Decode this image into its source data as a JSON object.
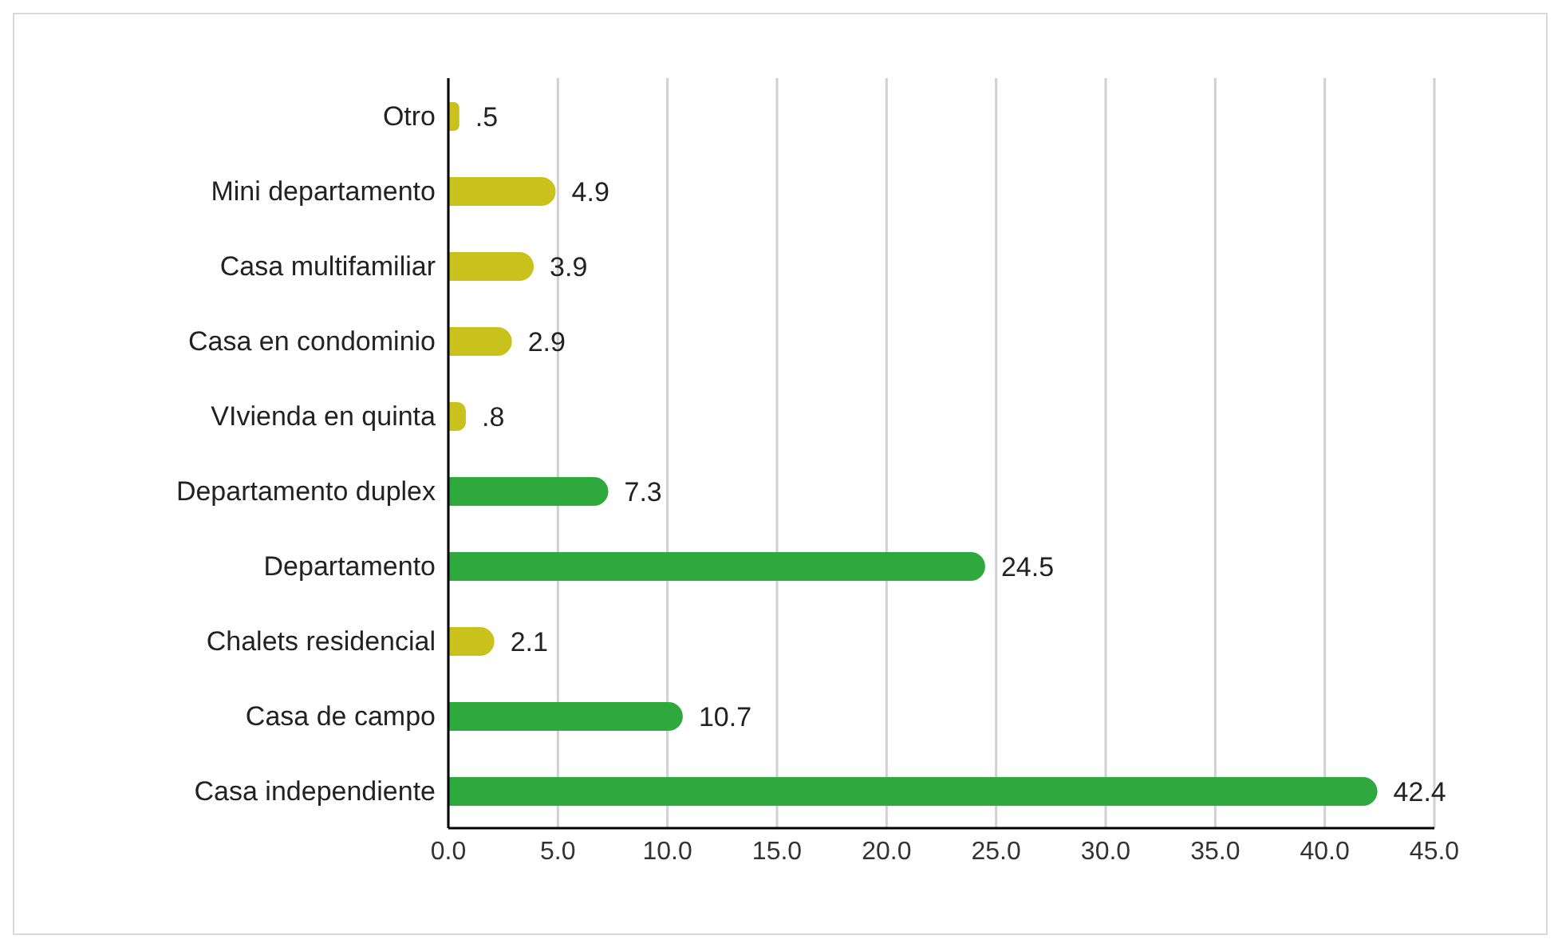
{
  "chart_data": {
    "type": "bar",
    "orientation": "horizontal",
    "categories": [
      "Otro",
      "Mini departamento",
      "Casa multifamiliar",
      "Casa en condominio",
      "VIvienda en quinta",
      "Departamento duplex",
      "Departamento",
      "Chalets residencial",
      "Casa de campo",
      "Casa independiente"
    ],
    "values": [
      0.5,
      4.9,
      3.9,
      2.9,
      0.8,
      7.3,
      24.5,
      2.1,
      10.7,
      42.4
    ],
    "colors": [
      "#c9c21c",
      "#c9c21c",
      "#c9c21c",
      "#c9c21c",
      "#c9c21c",
      "#2fa83e",
      "#2fa83e",
      "#c9c21c",
      "#2fa83e",
      "#2fa83e"
    ],
    "value_labels": [
      ".5",
      "4.9",
      "3.9",
      "2.9",
      ".8",
      "7.3",
      "24.5",
      "2.1",
      "10.7",
      "42.4"
    ],
    "xlim": [
      0,
      45
    ],
    "xticks": [
      {
        "value": 0,
        "label": "0.0"
      },
      {
        "value": 5,
        "label": "5.0"
      },
      {
        "value": 10,
        "label": "10.0"
      },
      {
        "value": 15,
        "label": "15.0"
      },
      {
        "value": 20,
        "label": "20.0"
      },
      {
        "value": 25,
        "label": "25.0"
      },
      {
        "value": 30,
        "label": "30.0"
      },
      {
        "value": 35,
        "label": "35.0"
      },
      {
        "value": 40,
        "label": "40.0"
      },
      {
        "value": 45,
        "label": "45.0"
      }
    ],
    "grid": "x"
  }
}
